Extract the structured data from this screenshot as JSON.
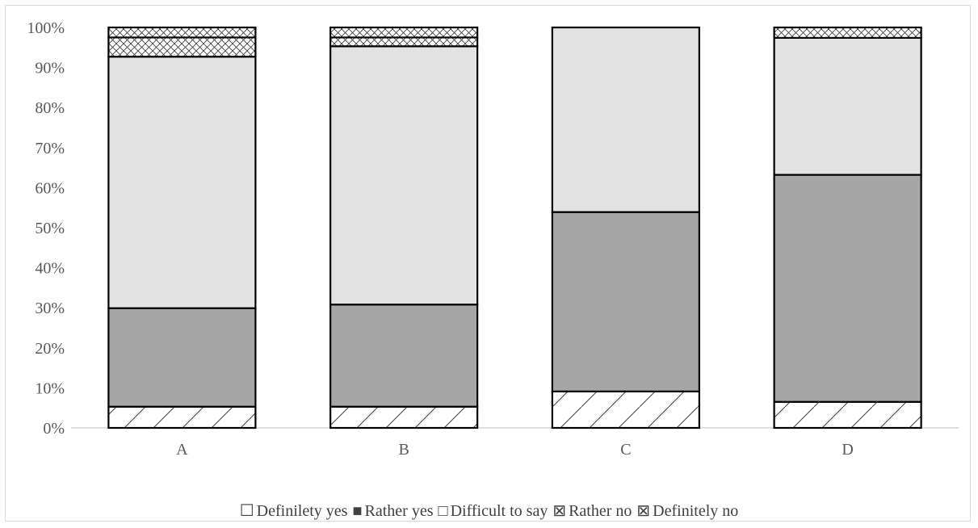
{
  "chart_data": {
    "type": "bar",
    "stacked": true,
    "percent_axis": true,
    "categories": [
      "A",
      "B",
      "C",
      "D"
    ],
    "series": [
      {
        "name": "Definilety yes",
        "values": [
          5.3,
          5.3,
          9.1,
          6.5
        ],
        "fill": "#ffffff",
        "pattern": "diagonal"
      },
      {
        "name": "Rather yes",
        "values": [
          24.6,
          25.5,
          44.8,
          56.7
        ],
        "fill": "#a6a6a6",
        "pattern": "none"
      },
      {
        "name": "Difficult to say",
        "values": [
          62.8,
          64.5,
          46.1,
          34.2
        ],
        "fill": "#e3e3e3",
        "pattern": "none"
      },
      {
        "name": "Rather no",
        "values": [
          4.8,
          2.2,
          0,
          0
        ],
        "fill": "#ffffff",
        "pattern": "crosshatch"
      },
      {
        "name": "Definitely no",
        "values": [
          2.5,
          2.5,
          0,
          2.6
        ],
        "fill": "#ffffff",
        "pattern": "crosshatch"
      }
    ],
    "yticks": [
      "0%",
      "10%",
      "20%",
      "30%",
      "40%",
      "50%",
      "60%",
      "70%",
      "80%",
      "90%",
      "100%"
    ],
    "ylim": [
      0,
      100
    ],
    "grid": false,
    "legend_position": "bottom",
    "title": "",
    "xlabel": "",
    "ylabel": ""
  },
  "legend": [
    {
      "glyph": "☐",
      "label": "Definilety yes"
    },
    {
      "glyph": "■",
      "label": "Rather yes"
    },
    {
      "glyph": "□",
      "label": "Difficult to say"
    },
    {
      "glyph": "⊠",
      "label": "Rather no"
    },
    {
      "glyph": "⊠",
      "label": "Definitely no"
    }
  ]
}
